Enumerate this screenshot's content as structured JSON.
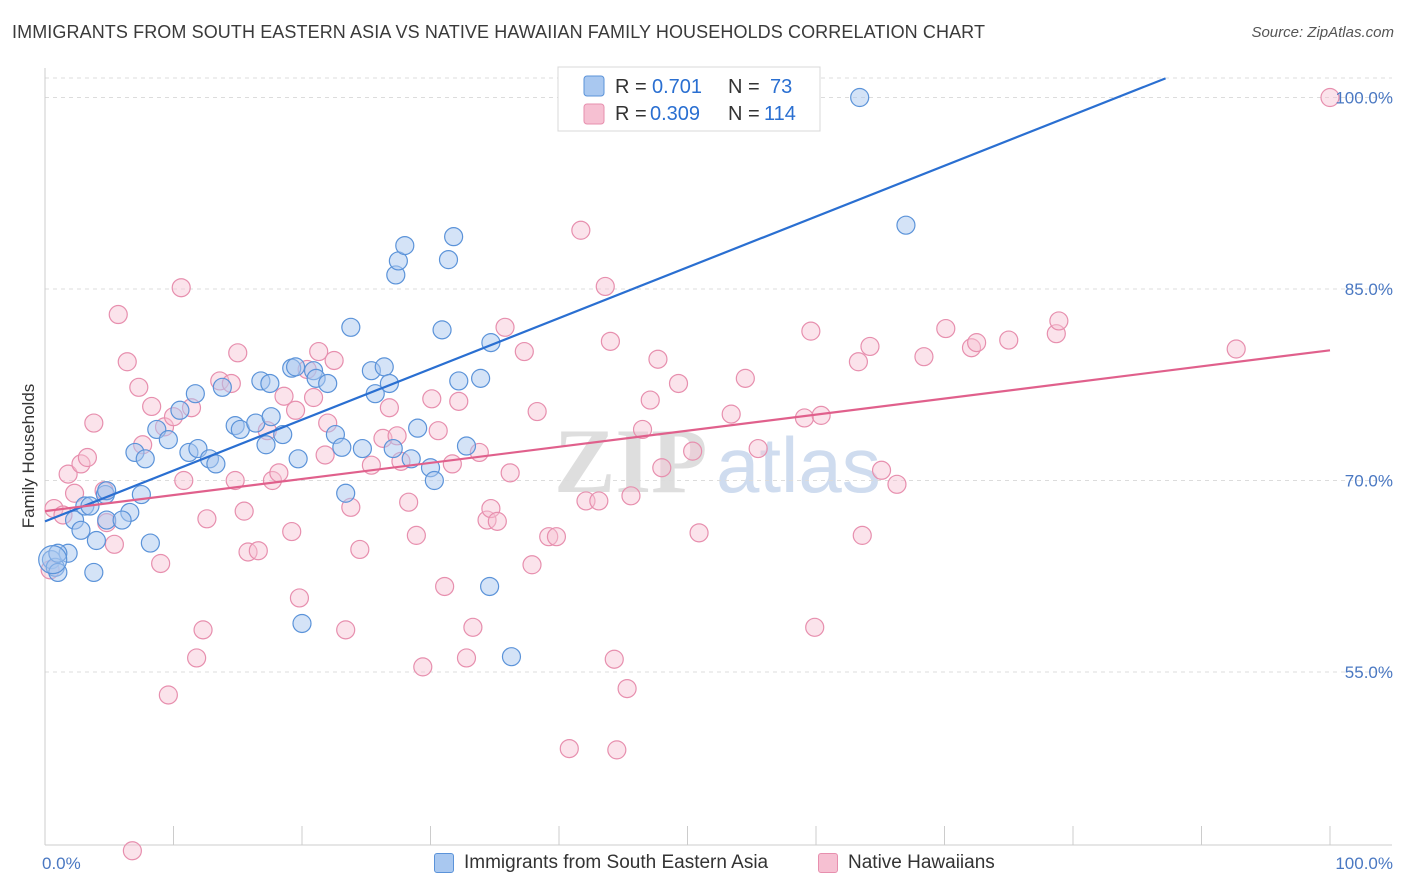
{
  "title": "IMMIGRANTS FROM SOUTH EASTERN ASIA VS NATIVE HAWAIIAN FAMILY HOUSEHOLDS CORRELATION CHART",
  "source": "Source: ZipAtlas.com",
  "watermark": {
    "zip": "ZIP",
    "atlas": "atlas"
  },
  "colors": {
    "blue_fill": "#a9c8f0",
    "blue_stroke": "#5b93d9",
    "blue_line": "#2a6fd1",
    "pink_fill": "#f6c0d2",
    "pink_stroke": "#e78fae",
    "pink_line": "#e0608c",
    "tick_text": "#4a78c2",
    "grid": "#dcdcdc"
  },
  "legend": {
    "rows": [
      {
        "r_label": "R =",
        "r_value": "0.701",
        "n_label": "N =",
        "n_value": "73"
      },
      {
        "r_label": "R =",
        "r_value": "0.309",
        "n_label": "N =",
        "n_value": "114"
      }
    ]
  },
  "bottom_legend": {
    "blue": "Immigrants from South Eastern Asia",
    "pink": "Native Hawaiians"
  },
  "chart_data": {
    "type": "scatter",
    "title": "IMMIGRANTS FROM SOUTH EASTERN ASIA VS NATIVE HAWAIIAN FAMILY HOUSEHOLDS CORRELATION CHART",
    "xlabel": "",
    "ylabel": "Family Households",
    "xlim": [
      0,
      100
    ],
    "ylim": [
      41,
      102
    ],
    "x_ticks": [
      "0.0%",
      "100.0%"
    ],
    "y_ticks": [
      {
        "value": 55,
        "label": "55.0%"
      },
      {
        "value": 70,
        "label": "70.0%"
      },
      {
        "value": 85,
        "label": "85.0%"
      },
      {
        "value": 100,
        "label": "100.0%"
      }
    ],
    "grid": true,
    "legend_position": "top-center",
    "series": [
      {
        "name": "Immigrants from South Eastern Asia",
        "color": "#5b93d9",
        "trend": {
          "x": [
            0,
            87.2
          ],
          "y": [
            66.8,
            101.5
          ]
        },
        "points": [
          [
            0.5,
            63.8
          ],
          [
            0.8,
            63.2
          ],
          [
            1.0,
            62.8
          ],
          [
            1.8,
            64.3
          ],
          [
            2.3,
            66.9
          ],
          [
            2.8,
            66.1
          ],
          [
            3.8,
            62.8
          ],
          [
            4.0,
            65.3
          ],
          [
            3.1,
            68.0
          ],
          [
            4.7,
            68.9
          ],
          [
            4.8,
            66.9
          ],
          [
            6.6,
            67.5
          ],
          [
            7.5,
            68.9
          ],
          [
            8.2,
            65.1
          ],
          [
            6.0,
            66.9
          ],
          [
            4.8,
            69.2
          ],
          [
            3.5,
            68.0
          ],
          [
            7.0,
            72.2
          ],
          [
            7.8,
            71.7
          ],
          [
            8.7,
            74.0
          ],
          [
            9.6,
            73.2
          ],
          [
            10.5,
            75.5
          ],
          [
            11.2,
            72.2
          ],
          [
            11.7,
            76.8
          ],
          [
            11.9,
            72.5
          ],
          [
            12.8,
            71.7
          ],
          [
            13.3,
            71.3
          ],
          [
            13.8,
            77.3
          ],
          [
            14.8,
            74.3
          ],
          [
            15.2,
            74.0
          ],
          [
            16.4,
            74.5
          ],
          [
            16.8,
            77.8
          ],
          [
            17.2,
            72.8
          ],
          [
            17.5,
            77.6
          ],
          [
            17.6,
            75.0
          ],
          [
            18.5,
            73.6
          ],
          [
            19.2,
            78.8
          ],
          [
            19.5,
            78.9
          ],
          [
            19.7,
            71.7
          ],
          [
            20.0,
            58.8
          ],
          [
            20.9,
            78.6
          ],
          [
            21.1,
            78.0
          ],
          [
            22.0,
            77.6
          ],
          [
            22.6,
            73.6
          ],
          [
            23.1,
            72.6
          ],
          [
            23.4,
            69.0
          ],
          [
            23.8,
            82.0
          ],
          [
            24.7,
            72.5
          ],
          [
            25.4,
            78.6
          ],
          [
            25.7,
            76.8
          ],
          [
            26.4,
            78.9
          ],
          [
            26.8,
            77.6
          ],
          [
            27.1,
            72.5
          ],
          [
            27.3,
            86.1
          ],
          [
            27.5,
            87.2
          ],
          [
            28.0,
            88.4
          ],
          [
            28.5,
            71.7
          ],
          [
            29.0,
            74.1
          ],
          [
            30.0,
            71.0
          ],
          [
            30.3,
            70.0
          ],
          [
            30.9,
            81.8
          ],
          [
            31.4,
            87.3
          ],
          [
            31.8,
            89.1
          ],
          [
            32.2,
            77.8
          ],
          [
            32.8,
            72.7
          ],
          [
            33.9,
            78.0
          ],
          [
            34.7,
            80.8
          ],
          [
            34.6,
            61.7
          ],
          [
            36.3,
            56.2
          ],
          [
            42.2,
            100.0
          ],
          [
            63.4,
            100.0
          ],
          [
            67.0,
            90.0
          ],
          [
            1.0,
            64.3
          ]
        ]
      },
      {
        "name": "Native Hawaiians",
        "color": "#e78fae",
        "trend": {
          "x": [
            0,
            100
          ],
          "y": [
            67.6,
            80.2
          ]
        },
        "points": [
          [
            0.4,
            63.0
          ],
          [
            0.7,
            67.8
          ],
          [
            1.4,
            67.3
          ],
          [
            1.8,
            70.5
          ],
          [
            2.3,
            69.0
          ],
          [
            2.8,
            71.3
          ],
          [
            3.3,
            71.8
          ],
          [
            3.8,
            74.5
          ],
          [
            4.6,
            69.2
          ],
          [
            4.8,
            66.7
          ],
          [
            5.4,
            65.0
          ],
          [
            5.7,
            83.0
          ],
          [
            6.4,
            79.3
          ],
          [
            7.3,
            77.3
          ],
          [
            7.6,
            72.8
          ],
          [
            8.3,
            75.8
          ],
          [
            9.0,
            63.5
          ],
          [
            9.3,
            74.2
          ],
          [
            9.6,
            53.2
          ],
          [
            10.6,
            85.1
          ],
          [
            10.8,
            70.0
          ],
          [
            11.4,
            75.7
          ],
          [
            11.8,
            56.1
          ],
          [
            12.3,
            58.3
          ],
          [
            12.6,
            67.0
          ],
          [
            13.6,
            77.8
          ],
          [
            14.5,
            77.6
          ],
          [
            14.8,
            70.0
          ],
          [
            15.5,
            67.6
          ],
          [
            15.8,
            64.4
          ],
          [
            16.6,
            64.5
          ],
          [
            17.3,
            73.9
          ],
          [
            17.7,
            70.0
          ],
          [
            18.2,
            70.6
          ],
          [
            18.6,
            76.6
          ],
          [
            19.2,
            66.0
          ],
          [
            19.5,
            75.5
          ],
          [
            19.8,
            60.8
          ],
          [
            20.4,
            78.7
          ],
          [
            20.9,
            76.5
          ],
          [
            21.3,
            80.1
          ],
          [
            21.8,
            72.0
          ],
          [
            22.5,
            79.4
          ],
          [
            23.4,
            58.3
          ],
          [
            23.8,
            67.9
          ],
          [
            24.5,
            64.6
          ],
          [
            25.4,
            71.2
          ],
          [
            26.3,
            73.3
          ],
          [
            26.8,
            75.7
          ],
          [
            27.4,
            73.5
          ],
          [
            27.7,
            71.5
          ],
          [
            28.3,
            68.3
          ],
          [
            28.9,
            65.7
          ],
          [
            29.4,
            55.4
          ],
          [
            30.1,
            76.4
          ],
          [
            30.6,
            73.9
          ],
          [
            31.1,
            61.7
          ],
          [
            31.7,
            71.3
          ],
          [
            32.2,
            76.2
          ],
          [
            32.8,
            56.1
          ],
          [
            33.3,
            58.5
          ],
          [
            33.8,
            72.2
          ],
          [
            34.4,
            66.9
          ],
          [
            34.7,
            67.8
          ],
          [
            35.2,
            66.8
          ],
          [
            36.2,
            70.6
          ],
          [
            37.3,
            80.1
          ],
          [
            37.9,
            63.4
          ],
          [
            38.3,
            75.4
          ],
          [
            39.2,
            65.6
          ],
          [
            39.8,
            65.6
          ],
          [
            40.8,
            49.0
          ],
          [
            41.7,
            89.6
          ],
          [
            42.1,
            68.4
          ],
          [
            43.1,
            68.4
          ],
          [
            43.6,
            85.2
          ],
          [
            44.0,
            80.9
          ],
          [
            44.3,
            56.0
          ],
          [
            44.5,
            48.9
          ],
          [
            45.3,
            53.7
          ],
          [
            45.6,
            68.8
          ],
          [
            46.5,
            74.0
          ],
          [
            47.1,
            76.3
          ],
          [
            47.7,
            79.5
          ],
          [
            49.3,
            77.6
          ],
          [
            50.4,
            72.3
          ],
          [
            50.9,
            65.9
          ],
          [
            53.4,
            75.2
          ],
          [
            54.5,
            78.0
          ],
          [
            59.1,
            74.9
          ],
          [
            59.6,
            81.7
          ],
          [
            59.9,
            58.5
          ],
          [
            60.4,
            75.1
          ],
          [
            63.3,
            79.3
          ],
          [
            63.6,
            65.7
          ],
          [
            64.2,
            80.5
          ],
          [
            65.1,
            70.8
          ],
          [
            66.3,
            69.7
          ],
          [
            68.4,
            79.7
          ],
          [
            70.1,
            81.9
          ],
          [
            72.1,
            80.4
          ],
          [
            72.5,
            80.8
          ],
          [
            75.0,
            81.0
          ],
          [
            78.7,
            81.5
          ],
          [
            78.9,
            82.5
          ],
          [
            92.7,
            80.3
          ],
          [
            100.0,
            100.0
          ],
          [
            6.8,
            41.0
          ],
          [
            10.0,
            75.0
          ],
          [
            15.0,
            80.0
          ],
          [
            22.0,
            74.5
          ],
          [
            35.8,
            82.0
          ],
          [
            48.0,
            71.0
          ],
          [
            55.5,
            72.5
          ]
        ]
      }
    ]
  }
}
